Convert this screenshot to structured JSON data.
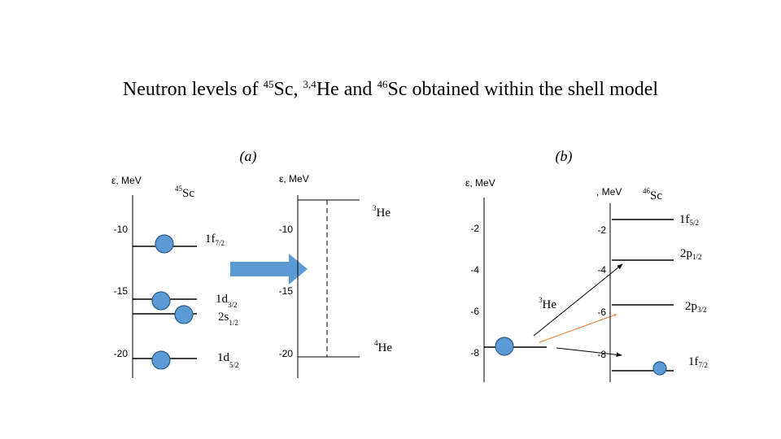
{
  "title": {
    "t1": "Neutron levels of ",
    "s1": "45",
    "t2": "Sc, ",
    "s2": "3,4",
    "t3": "He and ",
    "s3": "46",
    "t4": "Sc obtained within the shell model"
  },
  "panel_a": {
    "label": "(a)",
    "left": {
      "axis_label": "ε, MeV",
      "nucleus": {
        "sup": "45",
        "name": "Sc"
      },
      "ticks": [
        "-10",
        "-15",
        "-20"
      ],
      "levels": [
        {
          "main": "1f",
          "sub": "7/2"
        },
        {
          "main": "1d",
          "sub": "3/2"
        },
        {
          "main": "2s",
          "sub": "1/2"
        },
        {
          "main": "1d",
          "sub": "5/2"
        }
      ]
    },
    "right": {
      "axis_label": "ε, MeV",
      "ticks": [
        "-10",
        "-15",
        "-20"
      ],
      "upper": {
        "sup": "3",
        "name": "He"
      },
      "lower": {
        "sup": "4",
        "name": "He"
      }
    }
  },
  "panel_b": {
    "label": "(b)",
    "left": {
      "axis_label": "ε, MeV",
      "ticks": [
        "-2",
        "-4",
        "-6",
        "-8"
      ],
      "nucleus": {
        "sup": "3",
        "name": "He"
      }
    },
    "right": {
      "axis_label": ", MeV",
      "nucleus": {
        "sup": "46",
        "name": "Sc"
      },
      "ticks": [
        "-2",
        "-4",
        "-6",
        "-8"
      ],
      "levels": [
        {
          "main": "1f",
          "sub": "5/2"
        },
        {
          "main": "2p",
          "sub": "1/2"
        },
        {
          "main": "2p",
          "sub": "3/2"
        },
        {
          "main": "1f",
          "sub": "7/2"
        }
      ]
    }
  }
}
